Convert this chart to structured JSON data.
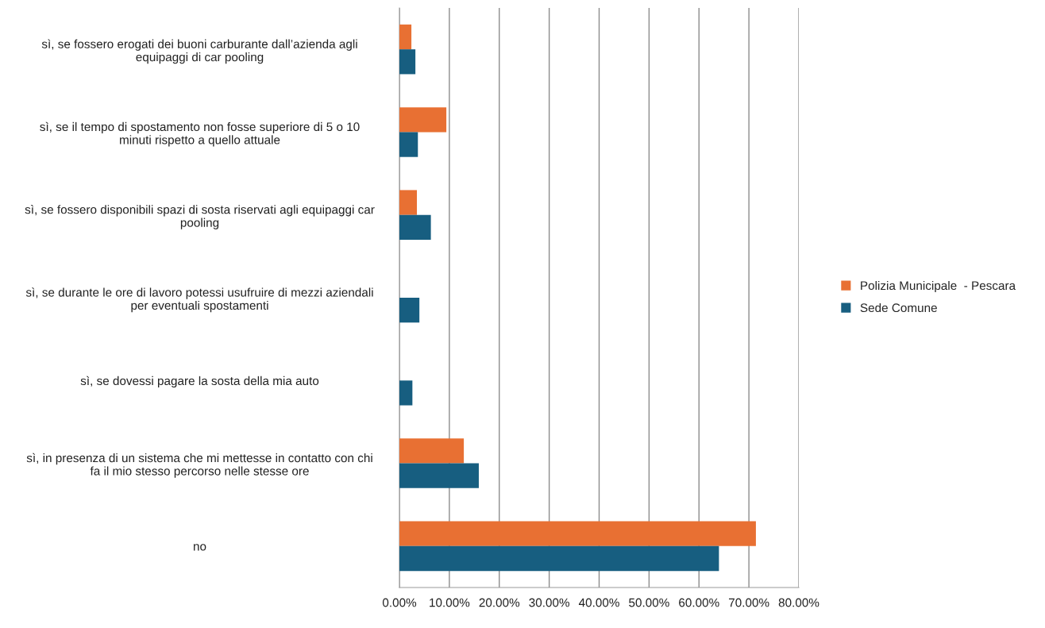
{
  "chart_data": {
    "type": "bar",
    "orientation": "horizontal",
    "categories": [
      "sì, se fossero erogati dei buoni carburante dall’azienda agli\nequipaggi di car pooling",
      "sì, se il tempo di spostamento non fosse superiore di 5 o 10\nminuti rispetto a quello attuale",
      "sì, se fossero disponibili spazi di sosta riservati agli equipaggi car\npooling",
      "sì, se durante le ore di lavoro potessi usufruire di mezzi aziendali\nper eventuali spostamenti",
      "sì, se dovessi pagare la sosta della mia auto",
      "sì, in presenza di un sistema che mi mettesse in contatto con chi\nfa il mio stesso percorso nelle stesse ore",
      "no"
    ],
    "series": [
      {
        "name": "Polizia Municipale  - Pescara",
        "color": "#e87033",
        "values": [
          2.4,
          9.4,
          3.5,
          null,
          null,
          12.9,
          71.4
        ]
      },
      {
        "name": "Sede Comune",
        "color": "#175e80",
        "values": [
          3.2,
          3.7,
          6.3,
          4.0,
          2.6,
          15.9,
          64.0
        ]
      }
    ],
    "xlim": [
      0,
      80
    ],
    "xticks": [
      {
        "value": 0,
        "label": "0.00%"
      },
      {
        "value": 10,
        "label": "10.00%"
      },
      {
        "value": 20,
        "label": "20.00%"
      },
      {
        "value": 30,
        "label": "30.00%"
      },
      {
        "value": 40,
        "label": "40.00%"
      },
      {
        "value": 50,
        "label": "50.00%"
      },
      {
        "value": 60,
        "label": "60.00%"
      },
      {
        "value": 70,
        "label": "70.00%"
      },
      {
        "value": 80,
        "label": "80.00%"
      }
    ],
    "grid": "x",
    "legend": "right"
  }
}
